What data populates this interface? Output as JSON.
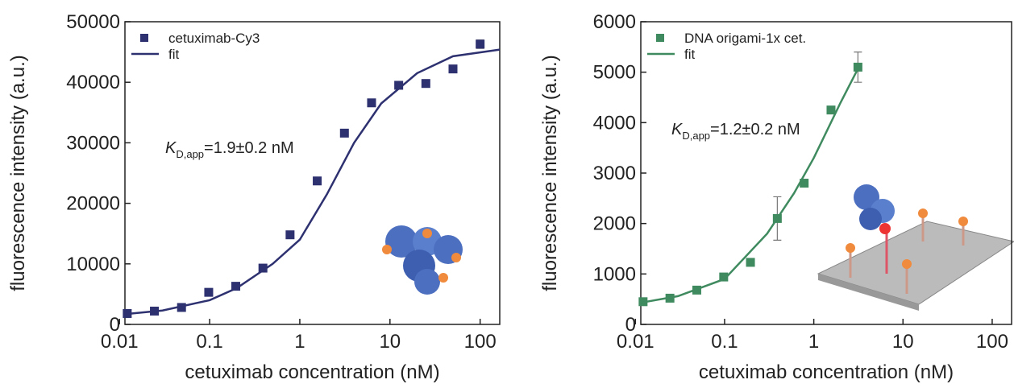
{
  "chart_data": [
    {
      "type": "scatter",
      "xscale": "log",
      "xlabel": "cetuximab concentration (nM)",
      "ylabel": "fluorescence intensity (a.u.)",
      "xlim": [
        0.0115,
        165
      ],
      "xticks": [
        0.01,
        0.1,
        1,
        10,
        100
      ],
      "ylim": [
        0,
        50000
      ],
      "yticks": [
        0,
        10000,
        20000,
        30000,
        40000,
        50000
      ],
      "annotation": {
        "symbol": "K",
        "subscript": "D,app",
        "text": "=1.9±0.2 nM"
      },
      "series": [
        {
          "name": "cetuximab-Cy3",
          "style": "markers",
          "color": "#2e3170",
          "x": [
            0.0122,
            0.0244,
            0.0488,
            0.0977,
            0.195,
            0.39,
            0.78,
            1.56,
            3.125,
            6.25,
            12.5,
            25,
            50,
            100
          ],
          "values": [
            1800,
            2200,
            2800,
            5300,
            6300,
            9300,
            14800,
            23700,
            31600,
            36600,
            39500,
            39800,
            42200,
            46300
          ],
          "errors": [
            null,
            null,
            null,
            null,
            null,
            null,
            null,
            null,
            null,
            null,
            null,
            null,
            500,
            700
          ]
        },
        {
          "name": "fit",
          "style": "line",
          "color": "#2e3170",
          "x": [
            0.0115,
            0.03,
            0.1,
            0.2,
            0.5,
            1,
            2,
            4,
            8,
            20,
            50,
            165
          ],
          "values": [
            1700,
            2300,
            4000,
            6000,
            10000,
            14000,
            21500,
            30000,
            36500,
            41500,
            44300,
            45400
          ]
        }
      ]
    },
    {
      "type": "scatter",
      "xscale": "log",
      "xlabel": "cetuximab concentration (nM)",
      "ylabel": "fluorescence intensity (a.u.)",
      "xlim": [
        0.0115,
        165
      ],
      "xticks": [
        0.01,
        0.1,
        1,
        10,
        100
      ],
      "ylim": [
        0,
        6000
      ],
      "yticks": [
        0,
        1000,
        2000,
        3000,
        4000,
        5000,
        6000
      ],
      "annotation": {
        "symbol": "K",
        "subscript": "D,app",
        "text": "=1.2±0.2 nM"
      },
      "series": [
        {
          "name": "DNA origami-1x cet.",
          "style": "markers",
          "color": "#3f8a5f",
          "x": [
            0.0122,
            0.0244,
            0.0488,
            0.0977,
            0.195,
            0.39,
            0.78,
            1.56,
            3.125
          ],
          "values": [
            450,
            520,
            680,
            940,
            1230,
            2100,
            2800,
            4250,
            5100
          ],
          "errors": [
            null,
            null,
            null,
            null,
            null,
            430,
            null,
            null,
            300
          ]
        },
        {
          "name": "fit",
          "style": "line",
          "color": "#3f8a5f",
          "x": [
            0.0115,
            0.03,
            0.1,
            0.3,
            0.6,
            1,
            2,
            3.3
          ],
          "values": [
            430,
            560,
            900,
            1800,
            2600,
            3300,
            4400,
            5150
          ]
        }
      ]
    }
  ]
}
